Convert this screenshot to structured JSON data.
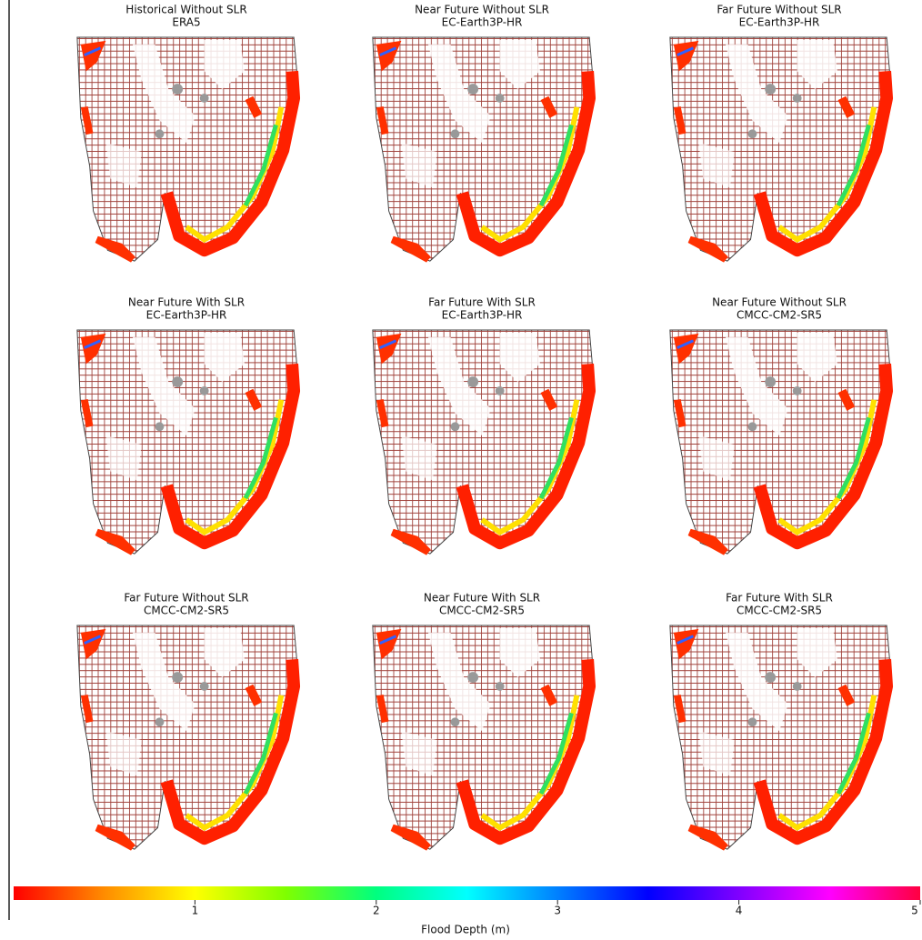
{
  "panels": [
    {
      "title": "Historical Without SLR",
      "subtitle": "ERA5"
    },
    {
      "title": "Near Future Without SLR",
      "subtitle": "EC-Earth3P-HR"
    },
    {
      "title": "Far Future Without SLR",
      "subtitle": "EC-Earth3P-HR"
    },
    {
      "title": "Near Future With SLR",
      "subtitle": "EC-Earth3P-HR"
    },
    {
      "title": "Far Future With SLR",
      "subtitle": "EC-Earth3P-HR"
    },
    {
      "title": "Near Future Without SLR",
      "subtitle": "CMCC-CM2-SR5"
    },
    {
      "title": "Far Future Without SLR",
      "subtitle": "CMCC-CM2-SR5"
    },
    {
      "title": "Near Future With SLR",
      "subtitle": "CMCC-CM2-SR5"
    },
    {
      "title": "Far Future With SLR",
      "subtitle": "CMCC-CM2-SR5"
    }
  ],
  "colorbar": {
    "label": "Flood Depth (m)",
    "lim": [
      0,
      5
    ],
    "ticks": [
      1,
      2,
      3,
      4,
      5
    ],
    "colors": [
      "#ff0000",
      "#ff8c00",
      "#ffff00",
      "#7fff00",
      "#00ff7f",
      "#00ffff",
      "#0080ff",
      "#0000ff",
      "#8000ff",
      "#ff00ff",
      "#ff0040"
    ]
  }
}
